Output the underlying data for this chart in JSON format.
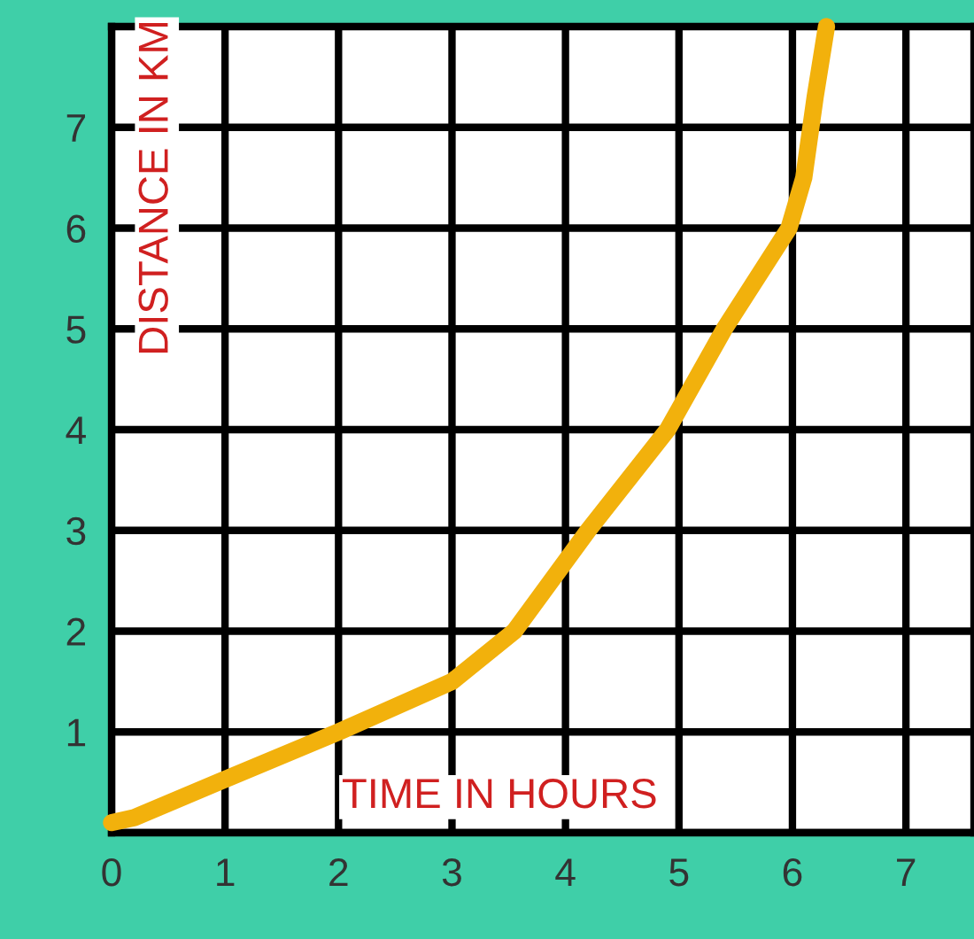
{
  "chart_data": {
    "type": "line",
    "xlabel": "TIME IN HOURS",
    "ylabel": "DISTANCE IN KM",
    "x": [
      0,
      0.2,
      1,
      2,
      3,
      3.55,
      4.2,
      4.9,
      5.4,
      5.97,
      6.1,
      6.2,
      6.3
    ],
    "series": [
      {
        "color": "#f2b10c",
        "values": [
          0.1,
          0.15,
          0.53,
          1,
          1.5,
          2,
          3,
          4,
          5,
          6,
          6.5,
          7.3,
          8
        ]
      }
    ],
    "xlim": [
      0,
      7.6
    ],
    "ylim": [
      0,
      8
    ],
    "xticks": [
      0,
      1,
      2,
      3,
      4,
      5,
      6,
      7
    ],
    "yticks": [
      {
        "value": 0,
        "label": null
      },
      1,
      2,
      3,
      4,
      5,
      6,
      7
    ],
    "grid": true,
    "marker": "none",
    "line_style": "solid"
  }
}
